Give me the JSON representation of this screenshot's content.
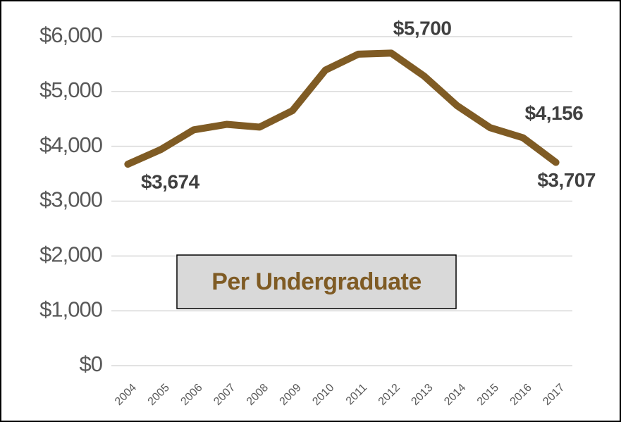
{
  "chart_data": {
    "type": "line",
    "categories": [
      "2004",
      "2005",
      "2006",
      "2007",
      "2008",
      "2009",
      "2010",
      "2011",
      "2012",
      "2013",
      "2014",
      "2015",
      "2016",
      "2017"
    ],
    "series": [
      {
        "name": "Per Undergraduate",
        "color": "#7f5b24",
        "values": [
          3674,
          3940,
          4300,
          4400,
          4350,
          4650,
          5390,
          5680,
          5700,
          5280,
          4740,
          4340,
          4156,
          3707
        ],
        "value_labels": [
          "$3,674",
          null,
          null,
          null,
          null,
          null,
          null,
          null,
          "$5,700",
          null,
          null,
          null,
          "$4,156",
          "$3,707"
        ]
      }
    ],
    "annotation": "Per Undergraduate",
    "ylim": [
      0,
      6000
    ],
    "yticks": [
      {
        "value": 0,
        "label": "$0"
      },
      {
        "value": 1000,
        "label": "$1,000"
      },
      {
        "value": 2000,
        "label": "$2,000"
      },
      {
        "value": 3000,
        "label": "$3,000"
      },
      {
        "value": 4000,
        "label": "$4,000"
      },
      {
        "value": 5000,
        "label": "$5,000"
      },
      {
        "value": 6000,
        "label": "$6,000"
      }
    ],
    "grid": true
  }
}
